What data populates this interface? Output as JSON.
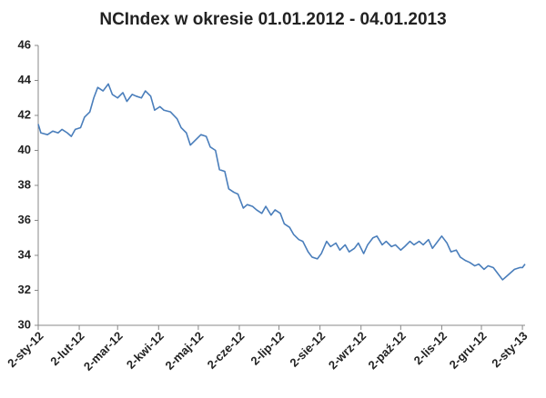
{
  "chart_data": {
    "type": "line",
    "title": "NCIndex w okresie 01.01.2012 - 04.01.2013",
    "x": [
      "2012-01-02",
      "2012-01-04",
      "2012-01-09",
      "2012-01-13",
      "2012-01-17",
      "2012-01-20",
      "2012-01-24",
      "2012-01-27",
      "2012-01-30",
      "2012-02-03",
      "2012-02-06",
      "2012-02-10",
      "2012-02-13",
      "2012-02-16",
      "2012-02-20",
      "2012-02-24",
      "2012-02-27",
      "2012-03-02",
      "2012-03-06",
      "2012-03-09",
      "2012-03-13",
      "2012-03-16",
      "2012-03-20",
      "2012-03-23",
      "2012-03-27",
      "2012-03-30",
      "2012-04-03",
      "2012-04-06",
      "2012-04-11",
      "2012-04-16",
      "2012-04-19",
      "2012-04-23",
      "2012-04-26",
      "2012-04-30",
      "2012-05-04",
      "2012-05-08",
      "2012-05-11",
      "2012-05-15",
      "2012-05-18",
      "2012-05-22",
      "2012-05-25",
      "2012-05-29",
      "2012-06-01",
      "2012-06-05",
      "2012-06-08",
      "2012-06-12",
      "2012-06-15",
      "2012-06-19",
      "2012-06-22",
      "2012-06-26",
      "2012-06-29",
      "2012-07-03",
      "2012-07-06",
      "2012-07-10",
      "2012-07-13",
      "2012-07-17",
      "2012-07-20",
      "2012-07-24",
      "2012-07-27",
      "2012-07-31",
      "2012-08-03",
      "2012-08-07",
      "2012-08-10",
      "2012-08-14",
      "2012-08-17",
      "2012-08-21",
      "2012-08-24",
      "2012-08-28",
      "2012-08-31",
      "2012-09-04",
      "2012-09-07",
      "2012-09-11",
      "2012-09-14",
      "2012-09-18",
      "2012-09-21",
      "2012-09-25",
      "2012-09-28",
      "2012-10-02",
      "2012-10-05",
      "2012-10-09",
      "2012-10-12",
      "2012-10-16",
      "2012-10-19",
      "2012-10-23",
      "2012-10-26",
      "2012-10-30",
      "2012-11-02",
      "2012-11-06",
      "2012-11-09",
      "2012-11-13",
      "2012-11-16",
      "2012-11-20",
      "2012-11-23",
      "2012-11-27",
      "2012-11-30",
      "2012-12-04",
      "2012-12-07",
      "2012-12-11",
      "2012-12-14",
      "2012-12-18",
      "2012-12-21",
      "2012-12-27",
      "2012-12-31",
      "2013-01-02",
      "2013-01-04"
    ],
    "values": [
      41.5,
      41.0,
      40.9,
      41.1,
      41.0,
      41.2,
      41.0,
      40.8,
      41.2,
      41.3,
      41.9,
      42.2,
      43.0,
      43.6,
      43.4,
      43.8,
      43.2,
      43.0,
      43.3,
      42.8,
      43.2,
      43.1,
      43.0,
      43.4,
      43.1,
      42.3,
      42.5,
      42.3,
      42.2,
      41.8,
      41.3,
      41.0,
      40.3,
      40.6,
      40.9,
      40.8,
      40.2,
      40.0,
      38.9,
      38.8,
      37.8,
      37.6,
      37.5,
      36.7,
      36.9,
      36.8,
      36.6,
      36.4,
      36.8,
      36.3,
      36.6,
      36.4,
      35.8,
      35.6,
      35.2,
      34.9,
      34.8,
      34.2,
      33.9,
      33.8,
      34.1,
      34.8,
      34.5,
      34.7,
      34.3,
      34.6,
      34.2,
      34.4,
      34.7,
      34.1,
      34.6,
      35.0,
      35.1,
      34.6,
      34.8,
      34.5,
      34.6,
      34.3,
      34.5,
      34.8,
      34.6,
      34.8,
      34.6,
      34.9,
      34.4,
      34.8,
      35.1,
      34.7,
      34.2,
      34.3,
      33.9,
      33.7,
      33.6,
      33.4,
      33.5,
      33.2,
      33.4,
      33.3,
      33.0,
      32.6,
      32.8,
      33.2,
      33.3,
      33.3,
      33.5
    ],
    "color": "#4a7ebb",
    "xlim": [
      "2012-01-02",
      "2013-01-04"
    ],
    "xticks": [
      {
        "value": "2012-01-02",
        "label": "2-sty-12"
      },
      {
        "value": "2012-02-02",
        "label": "2-lut-12"
      },
      {
        "value": "2012-03-02",
        "label": "2-mar-12"
      },
      {
        "value": "2012-04-02",
        "label": "2-kwi-12"
      },
      {
        "value": "2012-05-02",
        "label": "2-maj-12"
      },
      {
        "value": "2012-06-02",
        "label": "2-cze-12"
      },
      {
        "value": "2012-07-02",
        "label": "2-lip-12"
      },
      {
        "value": "2012-08-02",
        "label": "2-sie-12"
      },
      {
        "value": "2012-09-02",
        "label": "2-wrz-12"
      },
      {
        "value": "2012-10-02",
        "label": "2-paź-12"
      },
      {
        "value": "2012-11-02",
        "label": "2-lis-12"
      },
      {
        "value": "2012-12-02",
        "label": "2-gru-12"
      },
      {
        "value": "2013-01-02",
        "label": "2-sty-13"
      }
    ],
    "ylim": [
      30,
      46
    ],
    "yticks": [
      30,
      32,
      34,
      36,
      38,
      40,
      42,
      44,
      46
    ],
    "grid": false
  }
}
